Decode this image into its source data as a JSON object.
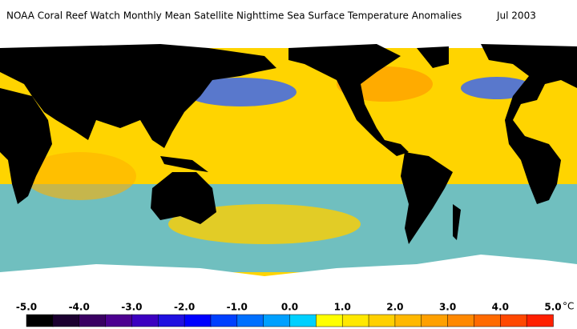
{
  "title": "NOAA Coral Reef Watch Monthly Mean Satellite Nighttime Sea Surface Temperature Anomalies",
  "date": "Jul 2003",
  "colorbar": {
    "range": [
      -5,
      5
    ],
    "ticks": [
      {
        "value": -5,
        "label": "-5.0"
      },
      {
        "value": -4,
        "label": "-4.0"
      },
      {
        "value": -3,
        "label": "-3.0"
      },
      {
        "value": -2,
        "label": "-2.0"
      },
      {
        "value": -1,
        "label": "-1.0"
      },
      {
        "value": 0,
        "label": "0.0"
      },
      {
        "value": 1,
        "label": "1.0"
      },
      {
        "value": 2,
        "label": "2.0"
      },
      {
        "value": 3,
        "label": "3.0"
      },
      {
        "value": 4,
        "label": "4.0"
      },
      {
        "value": 5,
        "label": "5.0"
      }
    ],
    "unit": "°C",
    "colors": [
      "#000000",
      "#1c0030",
      "#3a0062",
      "#4c0090",
      "#3c00c0",
      "#2010e0",
      "#0000ff",
      "#0040ff",
      "#0070ff",
      "#00a0ff",
      "#00d0ff",
      "#ffff00",
      "#ffe800",
      "#ffd000",
      "#ffb800",
      "#ffa000",
      "#ff8800",
      "#ff6a00",
      "#ff4800",
      "#ff2000"
    ]
  }
}
